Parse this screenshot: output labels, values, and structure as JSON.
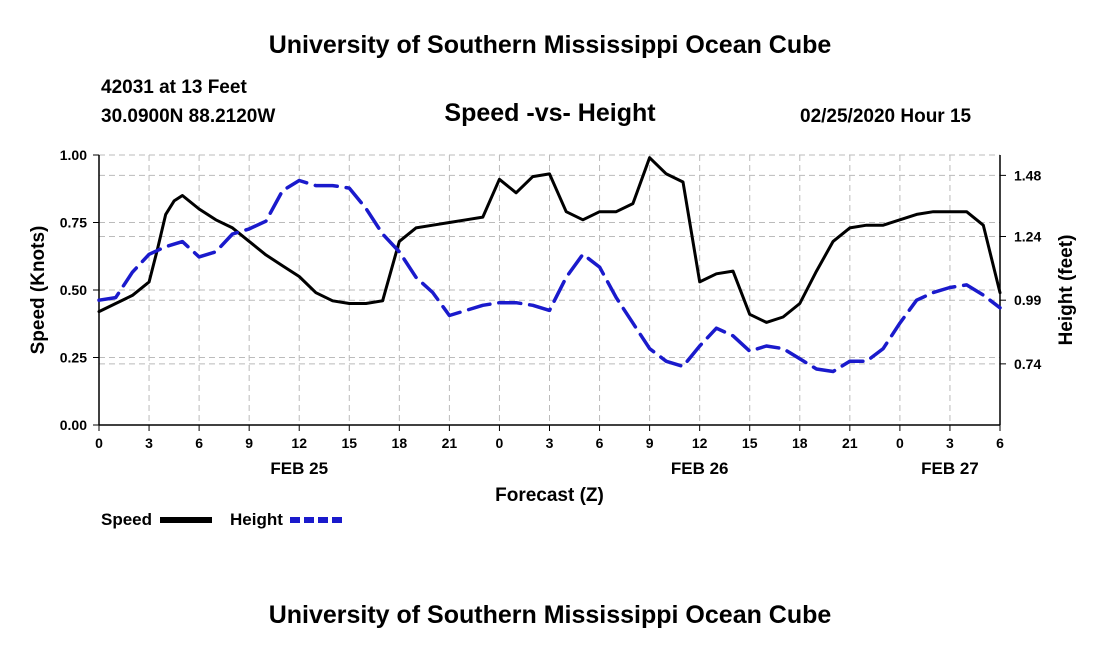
{
  "header": {
    "title": "University of Southern Mississippi Ocean Cube",
    "station": "42031 at 13 Feet",
    "coords": "30.0900N 88.2120W",
    "chart_title": "Speed -vs- Height",
    "datetime": "02/25/2020 Hour 15"
  },
  "footer": {
    "title": "University of Southern Mississippi Ocean Cube"
  },
  "legend": {
    "speed_label": "Speed",
    "height_label": "Height"
  },
  "colors": {
    "speed": "#000000",
    "height": "#1a1acc",
    "grid": "#bbbbbb"
  },
  "chart_data": {
    "type": "line",
    "title": "Speed -vs- Height",
    "xlabel": "Forecast (Z)",
    "ylabel_left": "Speed (Knots)",
    "ylabel_right": "Height (feet)",
    "x_hours": [
      0,
      54
    ],
    "x_tick_labels": [
      "0",
      "3",
      "6",
      "9",
      "12",
      "15",
      "18",
      "21",
      "0",
      "3",
      "6",
      "9",
      "12",
      "15",
      "18",
      "21",
      "0",
      "3",
      "6"
    ],
    "date_labels": [
      {
        "hour": 12,
        "label": "FEB 25"
      },
      {
        "hour": 36,
        "label": "FEB 26"
      },
      {
        "hour": 51,
        "label": "FEB 27"
      }
    ],
    "y_left": {
      "range": [
        0,
        1
      ],
      "ticks": [
        "0.00",
        "0.25",
        "0.50",
        "0.75",
        "1.00"
      ]
    },
    "y_right": {
      "range": [
        0.5,
        1.56
      ],
      "ticks": [
        "0.74",
        "0.99",
        "1.24",
        "1.48"
      ],
      "tick_values": [
        0.74,
        0.99,
        1.24,
        1.48
      ]
    },
    "grid": true,
    "series": [
      {
        "name": "Speed",
        "axis": "left",
        "style": "solid",
        "x": [
          0,
          1,
          2,
          3,
          3.5,
          4,
          4.5,
          5,
          6,
          7,
          8,
          9,
          10,
          11,
          12,
          13,
          14,
          15,
          16,
          17,
          18,
          19,
          20,
          21,
          22,
          23,
          24,
          25,
          26,
          27,
          28,
          29,
          30,
          31,
          32,
          33,
          34,
          35,
          36,
          37,
          38,
          39,
          40,
          41,
          42,
          43,
          44,
          45,
          46,
          47,
          48,
          49,
          50,
          51,
          52,
          53,
          54
        ],
        "values": [
          0.42,
          0.45,
          0.48,
          0.53,
          0.65,
          0.78,
          0.83,
          0.85,
          0.8,
          0.76,
          0.73,
          0.68,
          0.63,
          0.59,
          0.55,
          0.49,
          0.46,
          0.45,
          0.45,
          0.46,
          0.68,
          0.73,
          0.74,
          0.75,
          0.76,
          0.77,
          0.91,
          0.86,
          0.92,
          0.93,
          0.79,
          0.76,
          0.79,
          0.79,
          0.82,
          0.99,
          0.93,
          0.9,
          0.53,
          0.56,
          0.57,
          0.41,
          0.38,
          0.4,
          0.45,
          0.57,
          0.68,
          0.73,
          0.74,
          0.74,
          0.76,
          0.78,
          0.79,
          0.79,
          0.79,
          0.74,
          0.49
        ]
      },
      {
        "name": "Height",
        "axis": "right",
        "style": "dashed",
        "x": [
          0,
          1,
          2,
          3,
          4,
          5,
          6,
          7,
          8,
          9,
          10,
          11,
          12,
          13,
          14,
          15,
          16,
          17,
          18,
          19,
          20,
          21,
          22,
          23,
          24,
          25,
          26,
          27,
          28,
          29,
          30,
          31,
          32,
          33,
          34,
          35,
          36,
          37,
          38,
          39,
          40,
          41,
          42,
          43,
          44,
          45,
          46,
          47,
          48,
          49,
          50,
          51,
          52,
          53,
          54
        ],
        "values": [
          0.99,
          1.0,
          1.1,
          1.17,
          1.2,
          1.22,
          1.16,
          1.18,
          1.25,
          1.27,
          1.3,
          1.42,
          1.46,
          1.44,
          1.44,
          1.43,
          1.35,
          1.25,
          1.18,
          1.08,
          1.02,
          0.93,
          0.95,
          0.97,
          0.98,
          0.98,
          0.97,
          0.95,
          1.08,
          1.17,
          1.12,
          1.0,
          0.9,
          0.8,
          0.75,
          0.73,
          0.81,
          0.88,
          0.85,
          0.79,
          0.81,
          0.8,
          0.76,
          0.72,
          0.71,
          0.75,
          0.75,
          0.8,
          0.9,
          0.99,
          1.02,
          1.04,
          1.05,
          1.01,
          0.96
        ]
      }
    ]
  }
}
